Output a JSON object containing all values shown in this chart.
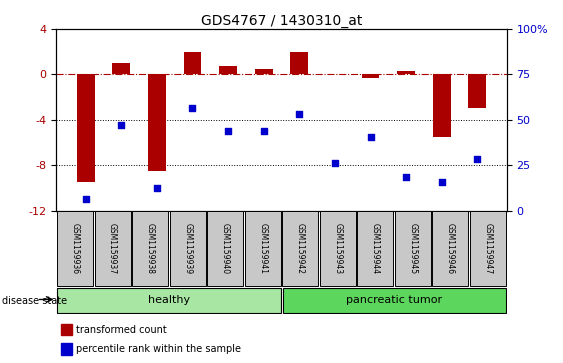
{
  "title": "GDS4767 / 1430310_at",
  "samples": [
    "GSM1159936",
    "GSM1159937",
    "GSM1159938",
    "GSM1159939",
    "GSM1159940",
    "GSM1159941",
    "GSM1159942",
    "GSM1159943",
    "GSM1159944",
    "GSM1159945",
    "GSM1159946",
    "GSM1159947"
  ],
  "bar_values": [
    -9.5,
    1.0,
    -8.5,
    2.0,
    0.7,
    0.5,
    2.0,
    0.0,
    -0.3,
    0.3,
    -5.5,
    -3.0
  ],
  "scatter_values": [
    -11.0,
    -4.5,
    -10.0,
    -3.0,
    -5.0,
    -5.0,
    -3.5,
    -7.8,
    -5.5,
    -9.0,
    -9.5,
    -7.5
  ],
  "bar_color": "#AA0000",
  "scatter_color": "#0000CC",
  "ylim_left": [
    -12,
    4
  ],
  "ylim_right": [
    0,
    100
  ],
  "yticks_left": [
    -12,
    -8,
    -4,
    0,
    4
  ],
  "yticks_right": [
    0,
    25,
    50,
    75,
    100
  ],
  "dotted_lines": [
    -4,
    -8
  ],
  "healthy_count": 6,
  "tumor_count": 6,
  "healthy_label": "healthy",
  "tumor_label": "pancreatic tumor",
  "disease_state_label": "disease state",
  "legend_bar_label": "transformed count",
  "legend_scatter_label": "percentile rank within the sample",
  "healthy_color": "#A8E6A3",
  "tumor_color": "#5CD65C",
  "sample_box_color": "#C8C8C8",
  "bar_width": 0.5
}
